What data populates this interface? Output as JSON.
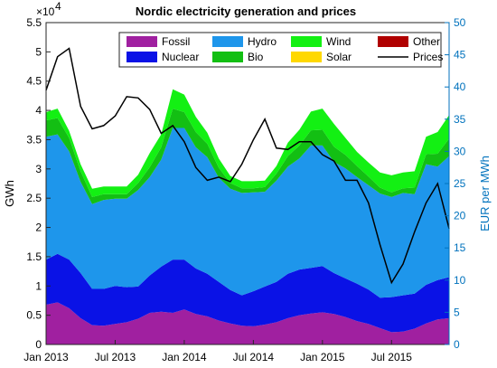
{
  "chart_data": {
    "type": "area",
    "title": "Nordic electricity generation and prices",
    "ylabel_left": "GWh",
    "ylabel_right": "EUR per MWh",
    "left_axis_exponent": "×10",
    "left_axis_exponent_power": "4",
    "ylim_left": [
      0,
      55000
    ],
    "ylim_right": [
      0,
      50
    ],
    "x_ticks": [
      "Jan 2013",
      "Jul 2013",
      "Jan 2014",
      "Jul 2014",
      "Jan 2015",
      "Jul 2015"
    ],
    "y_left_ticks": [
      "0",
      "0.5",
      "1",
      "1.5",
      "2",
      "2.5",
      "3",
      "3.5",
      "4",
      "4.5",
      "5",
      "5.5"
    ],
    "y_right_ticks": [
      "0",
      "5",
      "10",
      "15",
      "20",
      "25",
      "30",
      "35",
      "40",
      "45",
      "50"
    ],
    "x": [
      "2013-01",
      "2013-02",
      "2013-03",
      "2013-04",
      "2013-05",
      "2013-06",
      "2013-07",
      "2013-08",
      "2013-09",
      "2013-10",
      "2013-11",
      "2013-12",
      "2014-01",
      "2014-02",
      "2014-03",
      "2014-04",
      "2014-05",
      "2014-06",
      "2014-07",
      "2014-08",
      "2014-09",
      "2014-10",
      "2014-11",
      "2014-12",
      "2015-01",
      "2015-02",
      "2015-03",
      "2015-04",
      "2015-05",
      "2015-06",
      "2015-07",
      "2015-08",
      "2015-09",
      "2015-10",
      "2015-11",
      "2015-12"
    ],
    "legend_placement": "top-inside, 3 columns",
    "grid": false,
    "series": [
      {
        "name": "Fossil",
        "color": "#a020a0",
        "axis": "left",
        "values": [
          6800,
          7200,
          6200,
          4500,
          3300,
          3200,
          3500,
          3800,
          4400,
          5400,
          5600,
          5400,
          6000,
          5200,
          4800,
          4100,
          3600,
          3200,
          3100,
          3400,
          3800,
          4500,
          5000,
          5300,
          5500,
          5200,
          4700,
          4000,
          3500,
          2800,
          2100,
          2200,
          2700,
          3600,
          4300,
          4500
        ]
      },
      {
        "name": "Nuclear",
        "color": "#0a12e6",
        "axis": "left",
        "values": [
          7700,
          8300,
          8300,
          7700,
          6200,
          6300,
          6500,
          6000,
          5500,
          6400,
          7700,
          9100,
          8500,
          7800,
          7300,
          6600,
          5700,
          5200,
          6000,
          6500,
          6900,
          7600,
          7800,
          7800,
          7900,
          7000,
          6600,
          6400,
          5900,
          5200,
          6000,
          6200,
          6000,
          6600,
          6700,
          7000
        ]
      },
      {
        "name": "Hydro",
        "color": "#1e96eb",
        "axis": "left",
        "values": [
          21000,
          20400,
          18500,
          15600,
          14500,
          15200,
          14900,
          15100,
          16500,
          16800,
          18300,
          22500,
          22500,
          20700,
          19900,
          17800,
          17300,
          17500,
          16900,
          16200,
          17300,
          18300,
          19000,
          20900,
          20600,
          19000,
          18800,
          18200,
          17800,
          17800,
          17100,
          17500,
          17000,
          20600,
          19400,
          20700
        ]
      },
      {
        "name": "Bio",
        "color": "#13bf13",
        "axis": "left",
        "values": [
          2800,
          2800,
          2300,
          1800,
          1200,
          1000,
          800,
          800,
          1200,
          1700,
          2100,
          3300,
          2700,
          2600,
          2300,
          1700,
          1000,
          800,
          700,
          800,
          1200,
          1800,
          2200,
          2600,
          2700,
          2600,
          2300,
          1900,
          1500,
          1000,
          800,
          800,
          1100,
          1700,
          2200,
          3000
        ]
      },
      {
        "name": "Wind",
        "color": "#13f013",
        "axis": "left",
        "values": [
          1400,
          1600,
          1200,
          1200,
          1400,
          1300,
          1300,
          1300,
          1400,
          2400,
          2200,
          3300,
          3000,
          2600,
          1900,
          1600,
          1200,
          1200,
          1200,
          1100,
          1300,
          2300,
          2700,
          3200,
          3600,
          3900,
          2900,
          2400,
          2400,
          2600,
          2900,
          2700,
          2800,
          3000,
          3700,
          4000
        ]
      },
      {
        "name": "Other",
        "color": "#b00000",
        "axis": "left",
        "values": [
          0,
          0,
          0,
          0,
          0,
          0,
          0,
          0,
          0,
          0,
          0,
          0,
          0,
          0,
          0,
          0,
          0,
          0,
          0,
          0,
          0,
          0,
          0,
          0,
          0,
          0,
          0,
          0,
          0,
          0,
          0,
          0,
          0,
          0,
          0,
          0
        ]
      },
      {
        "name": "Solar",
        "color": "#ffd800",
        "axis": "left",
        "values": [
          0,
          0,
          0,
          0,
          0,
          0,
          0,
          0,
          0,
          0,
          0,
          0,
          0,
          0,
          0,
          0,
          0,
          0,
          0,
          0,
          0,
          0,
          0,
          0,
          0,
          0,
          0,
          0,
          0,
          0,
          0,
          0,
          0,
          0,
          0,
          0
        ]
      },
      {
        "name": "Prices",
        "color": "#000000",
        "axis": "right",
        "kind": "line",
        "values": [
          39.5,
          44.7,
          46.0,
          37.0,
          33.5,
          34.0,
          35.5,
          38.5,
          38.3,
          36.5,
          32.8,
          34.0,
          31.5,
          27.5,
          25.5,
          26.0,
          25.3,
          28.0,
          31.8,
          35.0,
          30.5,
          30.3,
          31.5,
          31.5,
          29.5,
          28.5,
          25.5,
          25.5,
          22.0,
          15.5,
          9.6,
          12.5,
          17.5,
          22.0,
          25.0,
          18.0
        ]
      }
    ]
  }
}
